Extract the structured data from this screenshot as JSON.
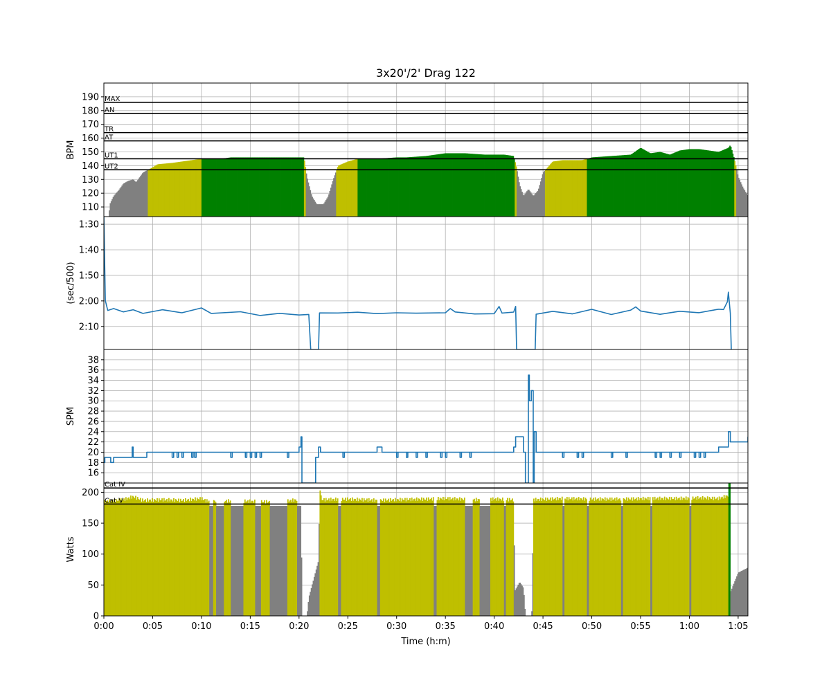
{
  "chart_data": {
    "title": "3x20'/2' Drag 122",
    "x_axis": {
      "label": "Time (h:m)",
      "range_min": [
        0,
        66
      ],
      "ticks": [
        {
          "t": 0,
          "label": "0:00"
        },
        {
          "t": 5,
          "label": "0:05"
        },
        {
          "t": 10,
          "label": "0:10"
        },
        {
          "t": 15,
          "label": "0:15"
        },
        {
          "t": 20,
          "label": "0:20"
        },
        {
          "t": 25,
          "label": "0:25"
        },
        {
          "t": 30,
          "label": "0:30"
        },
        {
          "t": 35,
          "label": "0:35"
        },
        {
          "t": 40,
          "label": "0:40"
        },
        {
          "t": 45,
          "label": "0:45"
        },
        {
          "t": 50,
          "label": "0:50"
        },
        {
          "t": 55,
          "label": "0:55"
        },
        {
          "t": 60,
          "label": "1:00"
        },
        {
          "t": 65,
          "label": "1:05"
        }
      ]
    },
    "panels": [
      {
        "id": "heart-rate",
        "type": "area",
        "ylabel": "BPM",
        "ylim": [
          103,
          200
        ],
        "yticks": [
          110,
          120,
          130,
          140,
          150,
          160,
          170,
          180,
          190
        ],
        "zone_lines": [
          {
            "label": "MAX",
            "value": 186
          },
          {
            "label": "AN",
            "value": 178
          },
          {
            "label": "TR",
            "value": 164
          },
          {
            "label": "AT",
            "value": 158
          },
          {
            "label": "UT1",
            "value": 145
          },
          {
            "label": "UT2",
            "value": 137
          }
        ],
        "zone_colors": {
          "low": "#808080",
          "ut2": "#bfbf00",
          "ut1": "#008000"
        },
        "hr": [
          [
            0.5,
            103
          ],
          [
            0.6,
            112
          ],
          [
            1,
            118
          ],
          [
            1.5,
            122
          ],
          [
            2,
            127
          ],
          [
            2.5,
            129
          ],
          [
            3,
            130
          ],
          [
            3.3,
            128
          ],
          [
            3.6,
            131
          ],
          [
            4,
            135
          ],
          [
            4.5,
            137
          ],
          [
            4.8,
            138
          ],
          [
            5.5,
            141
          ],
          [
            7,
            142
          ],
          [
            9,
            144
          ],
          [
            10,
            145
          ],
          [
            12,
            145
          ],
          [
            13,
            146
          ],
          [
            16,
            146
          ],
          [
            19,
            146
          ],
          [
            20.5,
            146
          ],
          [
            20.8,
            132
          ],
          [
            21.3,
            118
          ],
          [
            21.8,
            112
          ],
          [
            22.5,
            112
          ],
          [
            23,
            118
          ],
          [
            23.5,
            130
          ],
          [
            24,
            140
          ],
          [
            25,
            143
          ],
          [
            26,
            145
          ],
          [
            28,
            145
          ],
          [
            30,
            146
          ],
          [
            31,
            146
          ],
          [
            33,
            147
          ],
          [
            34,
            148
          ],
          [
            35,
            149
          ],
          [
            37,
            149
          ],
          [
            39,
            148
          ],
          [
            41,
            148
          ],
          [
            42,
            147
          ],
          [
            42.3,
            138
          ],
          [
            42.6,
            126
          ],
          [
            43,
            118
          ],
          [
            43.5,
            123
          ],
          [
            44,
            118
          ],
          [
            44.5,
            122
          ],
          [
            45,
            135
          ],
          [
            46,
            143
          ],
          [
            47,
            144
          ],
          [
            49,
            144
          ],
          [
            50,
            146
          ],
          [
            52,
            147
          ],
          [
            54,
            148
          ],
          [
            55,
            153
          ],
          [
            55.5,
            151
          ],
          [
            56,
            149
          ],
          [
            57,
            150
          ],
          [
            58,
            148
          ],
          [
            59,
            151
          ],
          [
            60,
            152
          ],
          [
            61,
            152
          ],
          [
            62,
            151
          ],
          [
            63,
            150
          ],
          [
            64,
            153
          ],
          [
            64.2,
            155
          ],
          [
            64.6,
            145
          ],
          [
            65,
            132
          ],
          [
            65.5,
            124
          ],
          [
            66,
            118
          ]
        ]
      },
      {
        "id": "pace",
        "type": "line",
        "ylabel": "(sec/500)",
        "ylim": [
          139,
          87
        ],
        "yticks": [
          {
            "v": 90,
            "label": "1:30"
          },
          {
            "v": 100,
            "label": "1:40"
          },
          {
            "v": 110,
            "label": "1:50"
          },
          {
            "v": 120,
            "label": "2:00"
          },
          {
            "v": 130,
            "label": "2:10"
          }
        ],
        "pace": [
          [
            0,
            87
          ],
          [
            0.15,
            120
          ],
          [
            0.4,
            124
          ],
          [
            1,
            124
          ],
          [
            2,
            124.5
          ],
          [
            3,
            122.5
          ],
          [
            4,
            124.5
          ],
          [
            6,
            124
          ],
          [
            8,
            124
          ],
          [
            10,
            123.5
          ],
          [
            11,
            124.5
          ],
          [
            14,
            125
          ],
          [
            16,
            125
          ],
          [
            18,
            125.5
          ],
          [
            20,
            125
          ],
          [
            21,
            125
          ],
          [
            21.2,
            139
          ],
          [
            22,
            139
          ],
          [
            22.1,
            124.5
          ],
          [
            24,
            124.5
          ],
          [
            26,
            124.5
          ],
          [
            28,
            125
          ],
          [
            30,
            124.5
          ],
          [
            32,
            125
          ],
          [
            35,
            124.5
          ],
          [
            35.5,
            123
          ],
          [
            36,
            124.5
          ],
          [
            38,
            125
          ],
          [
            40,
            125
          ],
          [
            40.5,
            122.5
          ],
          [
            40.8,
            125
          ],
          [
            42,
            124.5
          ],
          [
            42.2,
            122
          ],
          [
            42.3,
            139
          ],
          [
            44.2,
            139
          ],
          [
            44.3,
            124.5
          ],
          [
            46,
            124.5
          ],
          [
            48,
            124.5
          ],
          [
            50,
            124
          ],
          [
            52,
            124.5
          ],
          [
            54,
            124.5
          ],
          [
            54.5,
            123
          ],
          [
            55,
            124
          ],
          [
            57,
            125
          ],
          [
            59,
            124.5
          ],
          [
            61,
            124
          ],
          [
            63,
            124
          ],
          [
            63.5,
            123.5
          ],
          [
            63.9,
            120
          ],
          [
            64,
            116
          ],
          [
            64.2,
            124
          ],
          [
            64.3,
            139
          ]
        ]
      },
      {
        "id": "stroke-rate",
        "type": "line",
        "ylabel": "SPM",
        "ylim": [
          14,
          40
        ],
        "yticks": [
          16,
          18,
          20,
          22,
          24,
          26,
          28,
          30,
          32,
          34,
          36,
          38
        ],
        "spm": [
          [
            0,
            18
          ],
          [
            0.1,
            19
          ],
          [
            0.6,
            19
          ],
          [
            0.7,
            18
          ],
          [
            1,
            19
          ],
          [
            2,
            19
          ],
          [
            2.8,
            19
          ],
          [
            2.9,
            21
          ],
          [
            3,
            19
          ],
          [
            4,
            19
          ],
          [
            4.4,
            20
          ],
          [
            10,
            20
          ],
          [
            12,
            20
          ],
          [
            14,
            20
          ],
          [
            16,
            20
          ],
          [
            19,
            20
          ],
          [
            20,
            21
          ],
          [
            20.2,
            23
          ],
          [
            20.3,
            14
          ],
          [
            21.6,
            14
          ],
          [
            21.7,
            19
          ],
          [
            22,
            21
          ],
          [
            22.2,
            20
          ],
          [
            27,
            20
          ],
          [
            28,
            21
          ],
          [
            28.5,
            20
          ],
          [
            34,
            20
          ],
          [
            37,
            20
          ],
          [
            40,
            20
          ],
          [
            41,
            20
          ],
          [
            42,
            21
          ],
          [
            42.2,
            23
          ],
          [
            42.8,
            23
          ],
          [
            43,
            20
          ],
          [
            43.2,
            14
          ],
          [
            43.4,
            14
          ],
          [
            43.5,
            35
          ],
          [
            43.6,
            30
          ],
          [
            43.8,
            32
          ],
          [
            44,
            14
          ],
          [
            44.1,
            24
          ],
          [
            44.3,
            20
          ],
          [
            46,
            20
          ],
          [
            48,
            20
          ],
          [
            50,
            20
          ],
          [
            53,
            20
          ],
          [
            56,
            20
          ],
          [
            60,
            20
          ],
          [
            62,
            20
          ],
          [
            63,
            21
          ],
          [
            63.9,
            21
          ],
          [
            64,
            24
          ],
          [
            64.2,
            22
          ],
          [
            66,
            22
          ],
          [
            66,
            23
          ]
        ]
      },
      {
        "id": "power",
        "type": "area",
        "ylabel": "Watts",
        "ylim": [
          0,
          215
        ],
        "yticks": [
          0,
          50,
          100,
          150,
          200
        ],
        "zone_lines": [
          {
            "label": "Cat IV",
            "value": 207
          },
          {
            "label": "Cat V",
            "value": 181
          }
        ],
        "zone_colors": {
          "low": "#808080",
          "cat5": "#bfbf00",
          "cat4": "#008000"
        },
        "watts": [
          [
            0,
            185
          ],
          [
            2,
            188
          ],
          [
            3,
            193
          ],
          [
            4,
            187
          ],
          [
            6,
            188
          ],
          [
            8,
            187
          ],
          [
            10,
            190
          ],
          [
            10.5,
            186
          ],
          [
            14,
            186
          ],
          [
            18,
            184
          ],
          [
            20.2,
            189
          ],
          [
            20.3,
            0
          ],
          [
            20.8,
            0
          ],
          [
            21,
            30
          ],
          [
            21.5,
            60
          ],
          [
            22,
            90
          ],
          [
            22.1,
            208
          ],
          [
            22.3,
            188
          ],
          [
            25,
            189
          ],
          [
            28,
            187
          ],
          [
            30,
            188
          ],
          [
            33,
            189
          ],
          [
            35,
            190
          ],
          [
            38,
            188
          ],
          [
            40,
            189
          ],
          [
            42,
            188
          ],
          [
            42.1,
            40
          ],
          [
            42.6,
            55
          ],
          [
            43,
            45
          ],
          [
            43.2,
            0
          ],
          [
            43.8,
            0
          ],
          [
            43.9,
            15
          ],
          [
            44,
            188
          ],
          [
            47,
            190
          ],
          [
            50,
            189
          ],
          [
            53,
            189
          ],
          [
            56,
            190
          ],
          [
            59,
            190
          ],
          [
            61,
            191
          ],
          [
            63,
            190
          ],
          [
            64,
            195
          ],
          [
            64.05,
            215
          ],
          [
            64.2,
            215
          ],
          [
            64.25,
            40
          ],
          [
            65,
            70
          ],
          [
            66,
            78
          ]
        ],
        "gray_segments": [
          [
            10.8,
            11.2
          ],
          [
            11.5,
            12.3
          ],
          [
            13,
            14.3
          ],
          [
            15.5,
            16.1
          ],
          [
            17,
            18.8
          ],
          [
            19.8,
            20.3
          ],
          [
            24,
            24.3
          ],
          [
            28,
            28.3
          ],
          [
            33.8,
            34.1
          ],
          [
            37,
            37.8
          ],
          [
            38.5,
            39.6
          ],
          [
            41,
            41.2
          ],
          [
            47,
            47.2
          ],
          [
            49.5,
            49.7
          ],
          [
            53,
            53.2
          ],
          [
            56,
            56.2
          ],
          [
            60,
            60.2
          ]
        ]
      }
    ]
  }
}
